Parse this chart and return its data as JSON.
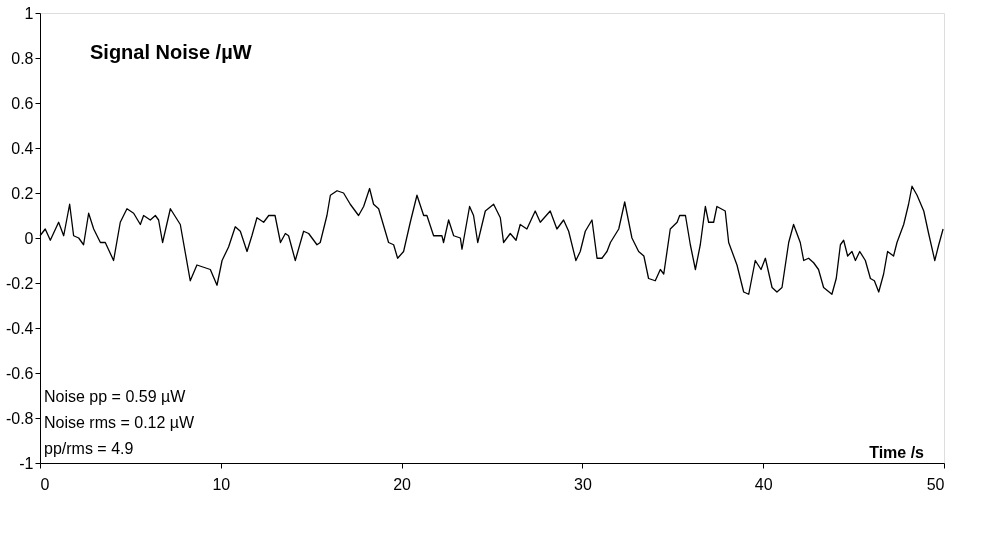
{
  "chart_data": {
    "type": "line",
    "title": "Signal Noise /µW",
    "xlabel": "Time /s",
    "annotations": [
      "Noise pp   = 0.59 µW",
      "Noise rms = 0.12 µW",
      "pp/rms       = 4.9"
    ],
    "xlim": [
      0,
      50
    ],
    "xticks": [
      0,
      10,
      20,
      30,
      40,
      50
    ],
    "ylim": [
      -1,
      1
    ],
    "yticks": [
      -1,
      -0.8,
      -0.6,
      -0.4,
      -0.2,
      0,
      0.2,
      0.4,
      0.6,
      0.8,
      1
    ],
    "grid": false,
    "marker": "none",
    "line_style": "solid",
    "series": [
      {
        "color": "#000000",
        "x": [
          0,
          0.29,
          0.57,
          1.03,
          1.31,
          1.64,
          1.86,
          2.14,
          2.41,
          2.69,
          2.97,
          3.34,
          3.61,
          4.07,
          4.44,
          4.81,
          5.18,
          5.55,
          5.73,
          6.1,
          6.38,
          6.56,
          6.78,
          7.21,
          7.76,
          8.31,
          8.68,
          9.05,
          9.42,
          9.79,
          10.07,
          10.43,
          10.8,
          11.08,
          11.45,
          11.72,
          12.0,
          12.37,
          12.65,
          13.0,
          13.3,
          13.57,
          13.75,
          14.12,
          14.58,
          14.86,
          15.32,
          15.5,
          15.87,
          16.06,
          16.43,
          16.79,
          17.16,
          17.62,
          17.9,
          18.23,
          18.45,
          18.73,
          19.28,
          19.56,
          19.78,
          20.11,
          20.48,
          20.85,
          21.22,
          21.4,
          21.77,
          22.23,
          22.32,
          22.6,
          22.88,
          23.25,
          23.34,
          23.76,
          23.98,
          24.21,
          24.63,
          25.09,
          25.46,
          25.64,
          26.01,
          26.33,
          26.56,
          26.93,
          27.39,
          27.67,
          28.22,
          28.59,
          28.96,
          29.24,
          29.64,
          29.88,
          30.16,
          30.53,
          30.81,
          31.08,
          31.36,
          31.55,
          32.01,
          32.34,
          32.74,
          33.11,
          33.4,
          33.66,
          34.03,
          34.31,
          34.5,
          34.86,
          35.24,
          35.38,
          35.7,
          35.97,
          36.25,
          36.52,
          36.8,
          36.98,
          37.26,
          37.44,
          37.9,
          38.09,
          38.55,
          38.92,
          39.2,
          39.56,
          39.88,
          40.12,
          40.49,
          40.76,
          41.04,
          41.41,
          41.68,
          42.05,
          42.24,
          42.51,
          42.79,
          43.06,
          43.34,
          43.8,
          44.04,
          44.27,
          44.45,
          44.67,
          44.91,
          45.1,
          45.34,
          45.65,
          45.93,
          46.15,
          46.39,
          46.66,
          46.88,
          47.21,
          47.4,
          47.77,
          48.04,
          48.23,
          48.51,
          48.88,
          49.15,
          49.49,
          49.71,
          49.95
        ],
        "values": [
          0.01,
          0.04,
          -0.01,
          0.07,
          0.01,
          0.15,
          0.01,
          0.0,
          -0.03,
          0.11,
          0.04,
          -0.02,
          -0.02,
          -0.1,
          0.07,
          0.13,
          0.11,
          0.06,
          0.1,
          0.08,
          0.1,
          0.08,
          -0.02,
          0.13,
          0.06,
          -0.19,
          -0.12,
          -0.13,
          -0.14,
          -0.21,
          -0.1,
          -0.04,
          0.05,
          0.03,
          -0.06,
          0.01,
          0.09,
          0.07,
          0.1,
          0.1,
          -0.02,
          0.02,
          0.01,
          -0.1,
          0.03,
          0.02,
          -0.03,
          -0.02,
          0.1,
          0.19,
          0.21,
          0.2,
          0.15,
          0.1,
          0.14,
          0.22,
          0.15,
          0.13,
          -0.02,
          -0.03,
          -0.09,
          -0.06,
          0.07,
          0.19,
          0.1,
          0.1,
          0.01,
          0.01,
          -0.02,
          0.08,
          0.01,
          0.0,
          -0.05,
          0.14,
          0.1,
          -0.02,
          0.12,
          0.15,
          0.09,
          -0.02,
          0.02,
          -0.01,
          0.06,
          0.04,
          0.12,
          0.07,
          0.12,
          0.04,
          0.08,
          0.03,
          -0.1,
          -0.06,
          0.03,
          0.08,
          -0.09,
          -0.09,
          -0.06,
          -0.02,
          0.04,
          0.16,
          0.0,
          -0.06,
          -0.08,
          -0.18,
          -0.19,
          -0.14,
          -0.16,
          0.04,
          0.07,
          0.1,
          0.1,
          -0.03,
          -0.14,
          -0.03,
          0.14,
          0.07,
          0.07,
          0.14,
          0.12,
          -0.02,
          -0.12,
          -0.24,
          -0.25,
          -0.1,
          -0.14,
          -0.09,
          -0.22,
          -0.24,
          -0.22,
          -0.02,
          0.06,
          -0.02,
          -0.1,
          -0.09,
          -0.11,
          -0.14,
          -0.22,
          -0.25,
          -0.18,
          -0.03,
          -0.01,
          -0.08,
          -0.06,
          -0.1,
          -0.06,
          -0.1,
          -0.18,
          -0.19,
          -0.24,
          -0.16,
          -0.06,
          -0.08,
          -0.02,
          0.06,
          0.15,
          0.23,
          0.19,
          0.12,
          0.02,
          -0.1,
          -0.03,
          0.04
        ]
      }
    ]
  }
}
